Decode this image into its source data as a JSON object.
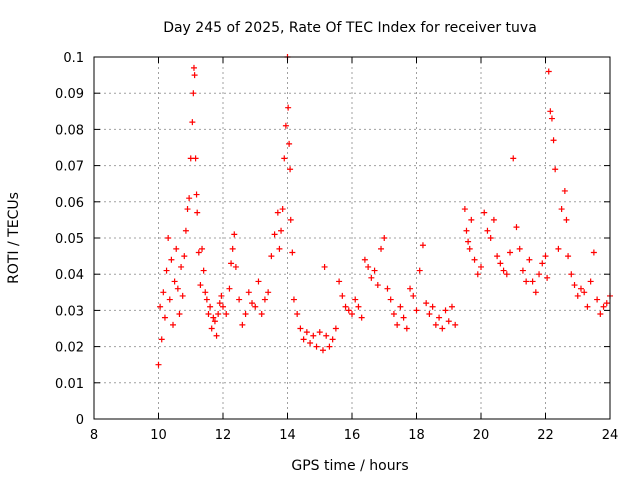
{
  "chart_data": {
    "type": "scatter",
    "title": "Day 245 of 2025, Rate Of TEC Index for receiver tuva",
    "xlabel": "GPS time / hours",
    "ylabel": "ROTI / TECUs",
    "xlim": [
      8,
      24
    ],
    "ylim": [
      0,
      0.1
    ],
    "x_ticks": [
      "8",
      "10",
      "12",
      "14",
      "16",
      "18",
      "20",
      "22",
      "24"
    ],
    "y_ticks": [
      "0",
      "0.01",
      "0.02",
      "0.03",
      "0.04",
      "0.05",
      "0.06",
      "0.07",
      "0.08",
      "0.09",
      "0.1"
    ],
    "grid": true,
    "marker": "+",
    "color": "#ff0000",
    "series": [
      {
        "name": "ROTI",
        "x": [
          10.0,
          10.05,
          10.1,
          10.15,
          10.2,
          10.25,
          10.3,
          10.35,
          10.4,
          10.45,
          10.5,
          10.55,
          10.6,
          10.65,
          10.7,
          10.75,
          10.8,
          10.85,
          10.9,
          10.95,
          11.0,
          11.05,
          11.08,
          11.1,
          11.12,
          11.15,
          11.18,
          11.2,
          11.25,
          11.3,
          11.35,
          11.4,
          11.45,
          11.5,
          11.55,
          11.6,
          11.65,
          11.7,
          11.75,
          11.8,
          11.85,
          11.9,
          11.95,
          12.0,
          12.1,
          12.2,
          12.25,
          12.3,
          12.35,
          12.4,
          12.5,
          12.6,
          12.7,
          12.8,
          12.9,
          13.0,
          13.1,
          13.2,
          13.3,
          13.4,
          13.5,
          13.6,
          13.7,
          13.75,
          13.8,
          13.85,
          13.9,
          13.95,
          14.0,
          14.02,
          14.05,
          14.08,
          14.1,
          14.15,
          14.2,
          14.3,
          14.4,
          14.5,
          14.6,
          14.7,
          14.8,
          14.9,
          15.0,
          15.1,
          15.15,
          15.2,
          15.3,
          15.4,
          15.5,
          15.6,
          15.7,
          15.8,
          15.9,
          16.0,
          16.1,
          16.2,
          16.3,
          16.4,
          16.5,
          16.6,
          16.7,
          16.8,
          16.9,
          17.0,
          17.1,
          17.2,
          17.3,
          17.4,
          17.5,
          17.6,
          17.7,
          17.8,
          17.9,
          18.0,
          18.1,
          18.2,
          18.3,
          18.4,
          18.5,
          18.6,
          18.7,
          18.8,
          18.9,
          19.0,
          19.1,
          19.2,
          19.5,
          19.55,
          19.6,
          19.65,
          19.7,
          19.8,
          19.9,
          20.0,
          20.1,
          20.2,
          20.3,
          20.4,
          20.5,
          20.6,
          20.7,
          20.8,
          20.9,
          21.0,
          21.1,
          21.2,
          21.3,
          21.4,
          21.5,
          21.6,
          21.7,
          21.8,
          21.9,
          22.0,
          22.05,
          22.1,
          22.15,
          22.2,
          22.25,
          22.3,
          22.4,
          22.5,
          22.6,
          22.65,
          22.7,
          22.8,
          22.9,
          23.0,
          23.1,
          23.2,
          23.3,
          23.4,
          23.5,
          23.6,
          23.7,
          23.8,
          23.9,
          24.0
        ],
        "y": [
          0.015,
          0.031,
          0.022,
          0.035,
          0.028,
          0.041,
          0.05,
          0.033,
          0.044,
          0.026,
          0.038,
          0.047,
          0.036,
          0.029,
          0.042,
          0.034,
          0.045,
          0.052,
          0.058,
          0.061,
          0.072,
          0.082,
          0.09,
          0.097,
          0.095,
          0.072,
          0.062,
          0.057,
          0.046,
          0.037,
          0.047,
          0.041,
          0.035,
          0.033,
          0.029,
          0.031,
          0.025,
          0.028,
          0.027,
          0.023,
          0.029,
          0.032,
          0.034,
          0.031,
          0.029,
          0.036,
          0.043,
          0.047,
          0.051,
          0.042,
          0.033,
          0.026,
          0.029,
          0.035,
          0.032,
          0.031,
          0.038,
          0.029,
          0.033,
          0.035,
          0.045,
          0.051,
          0.057,
          0.047,
          0.052,
          0.058,
          0.072,
          0.081,
          0.1,
          0.086,
          0.076,
          0.069,
          0.055,
          0.046,
          0.033,
          0.029,
          0.025,
          0.022,
          0.024,
          0.021,
          0.023,
          0.02,
          0.024,
          0.019,
          0.042,
          0.023,
          0.02,
          0.022,
          0.025,
          0.038,
          0.034,
          0.031,
          0.03,
          0.029,
          0.033,
          0.031,
          0.028,
          0.044,
          0.042,
          0.039,
          0.041,
          0.037,
          0.047,
          0.05,
          0.036,
          0.033,
          0.029,
          0.026,
          0.031,
          0.028,
          0.025,
          0.036,
          0.034,
          0.03,
          0.041,
          0.048,
          0.032,
          0.029,
          0.031,
          0.026,
          0.028,
          0.025,
          0.03,
          0.027,
          0.031,
          0.026,
          0.058,
          0.052,
          0.049,
          0.047,
          0.055,
          0.044,
          0.04,
          0.042,
          0.057,
          0.052,
          0.05,
          0.055,
          0.045,
          0.043,
          0.041,
          0.04,
          0.046,
          0.072,
          0.053,
          0.047,
          0.041,
          0.038,
          0.044,
          0.038,
          0.035,
          0.04,
          0.043,
          0.045,
          0.039,
          0.096,
          0.085,
          0.083,
          0.077,
          0.069,
          0.047,
          0.058,
          0.063,
          0.055,
          0.045,
          0.04,
          0.037,
          0.034,
          0.036,
          0.035,
          0.031,
          0.038,
          0.046,
          0.033,
          0.029,
          0.031,
          0.032,
          0.034
        ]
      }
    ]
  }
}
